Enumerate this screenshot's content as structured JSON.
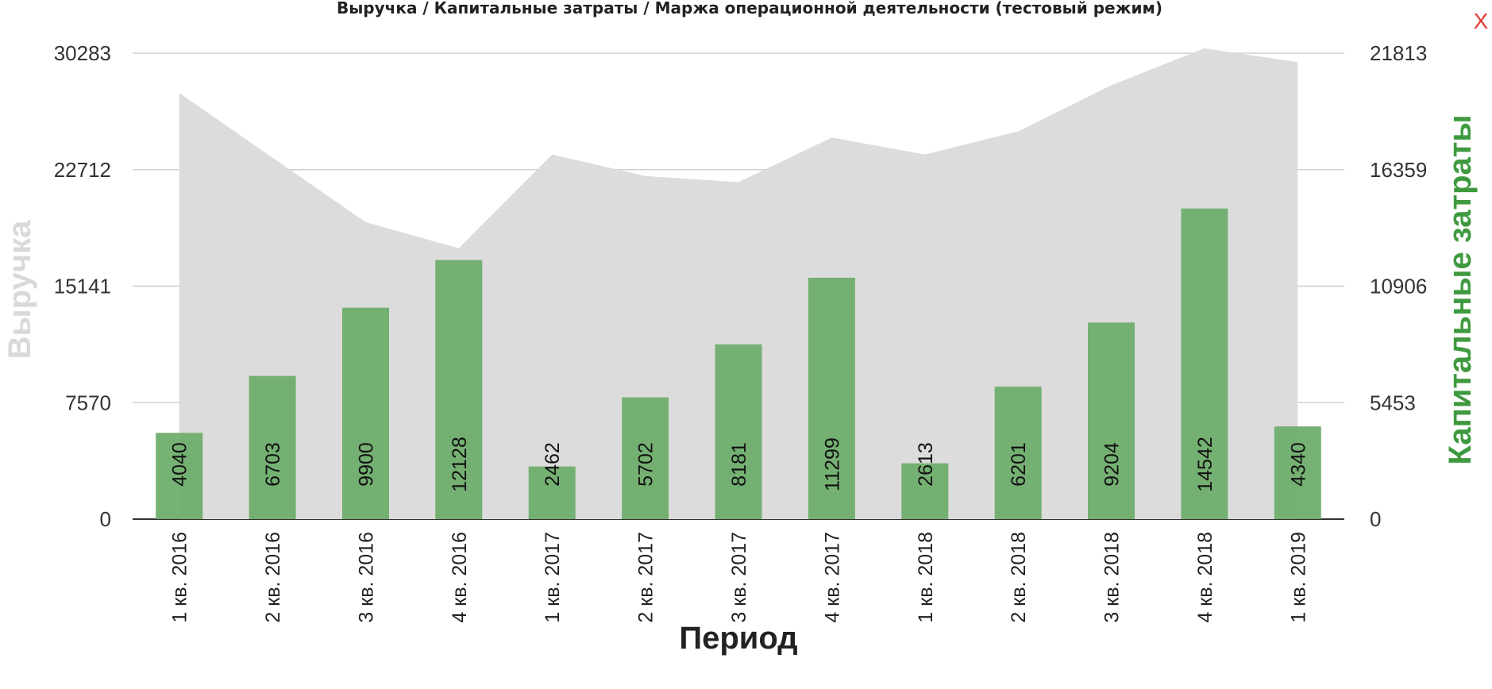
{
  "close_label": "X",
  "colors": {
    "area": "#dcdcdc",
    "bar": "#6aab68",
    "grid": "#d0d0d0",
    "axis_title_left": "#d9d9d9",
    "axis_title_right": "#3f9a3f",
    "close": "#e53935"
  },
  "chart_data": {
    "type": "bar",
    "title": "Выручка / Капитальные затраты / Маржа операционной деятельности (тестовый режим)",
    "xlabel": "Период",
    "ylabel": "Выручка",
    "y2label": "Капитальные затраты",
    "categories": [
      "1 кв. 2016",
      "2 кв. 2016",
      "3 кв. 2016",
      "4 кв. 2016",
      "1 кв. 2017",
      "2 кв. 2017",
      "3 кв. 2017",
      "4 кв. 2017",
      "1 кв. 2018",
      "2 кв. 2018",
      "3 кв. 2018",
      "4 кв. 2018",
      "1 кв. 2019"
    ],
    "ylim": [
      0,
      30283
    ],
    "y2lim": [
      0,
      21813
    ],
    "yticks": [
      "0",
      "7570",
      "15141",
      "22712",
      "30283"
    ],
    "y2ticks": [
      "0",
      "5453",
      "10906",
      "16359",
      "21813"
    ],
    "grid": true,
    "series": [
      {
        "type": "area",
        "axis": "left",
        "values": [
          27700,
          23500,
          19300,
          17600,
          23700,
          22300,
          21900,
          24800,
          23700,
          25200,
          28200,
          30600,
          29700
        ]
      },
      {
        "type": "bar",
        "axis": "right",
        "name": "Капитальные затраты",
        "values": [
          4040,
          6703,
          9900,
          12128,
          2462,
          5702,
          8181,
          11299,
          2613,
          6201,
          9204,
          14542,
          4340
        ],
        "labels": [
          "4040",
          "6703",
          "9900",
          "12128",
          "2462",
          "5702",
          "8181",
          "11299",
          "2613",
          "6201",
          "9204",
          "14542",
          "4340"
        ]
      }
    ]
  }
}
